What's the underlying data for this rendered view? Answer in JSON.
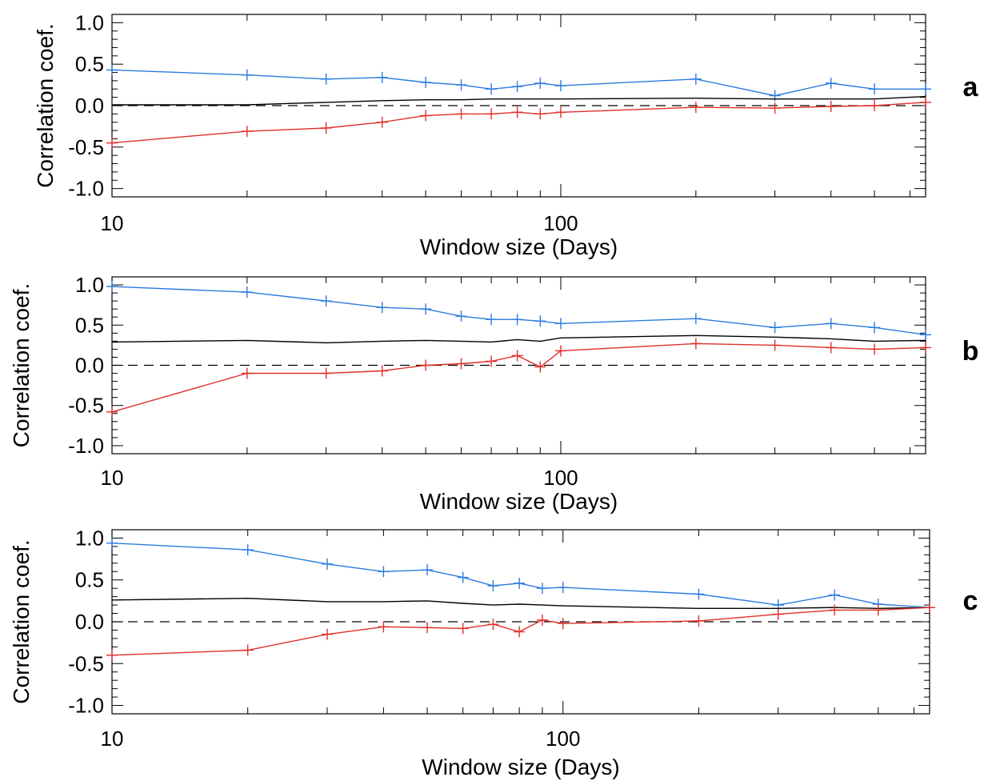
{
  "chart_data": [
    {
      "type": "line",
      "panel_label": "a",
      "xlabel": "Window size (Days)",
      "ylabel": "Correlation coef.",
      "xscale": "log",
      "xlim": [
        10,
        650
      ],
      "ylim": [
        -1.1,
        1.1
      ],
      "xticks": [
        10,
        100
      ],
      "yticks": [
        1.0,
        0.5,
        0.0,
        -0.5,
        -1.0
      ],
      "ytick_labels": [
        "1.0",
        "0.5",
        "0.0",
        "-0.5",
        "-1.0"
      ],
      "reference_line": 0.0,
      "x": [
        10,
        20,
        30,
        40,
        50,
        60,
        70,
        80,
        90,
        100,
        200,
        300,
        400,
        500,
        650
      ],
      "series": [
        {
          "color": "#2b7be0",
          "markers": true,
          "values": [
            0.43,
            0.37,
            0.32,
            0.34,
            0.28,
            0.25,
            0.2,
            0.23,
            0.27,
            0.24,
            0.32,
            0.12,
            0.27,
            0.2,
            0.2
          ]
        },
        {
          "color": "#000000",
          "markers": false,
          "values": [
            0.01,
            0.01,
            0.04,
            0.06,
            0.07,
            0.07,
            0.08,
            0.08,
            0.08,
            0.08,
            0.09,
            0.08,
            0.08,
            0.08,
            0.11
          ]
        },
        {
          "color": "#e0302b",
          "markers": true,
          "values": [
            -0.45,
            -0.31,
            -0.27,
            -0.2,
            -0.12,
            -0.1,
            -0.1,
            -0.08,
            -0.1,
            -0.08,
            -0.02,
            -0.03,
            -0.01,
            0.0,
            0.04
          ]
        }
      ]
    },
    {
      "type": "line",
      "panel_label": "b",
      "xlabel": "Window size (Days)",
      "ylabel": "Correlation coef.",
      "xscale": "log",
      "xlim": [
        10,
        650
      ],
      "ylim": [
        -1.1,
        1.1
      ],
      "xticks": [
        10,
        100
      ],
      "yticks": [
        1.0,
        0.5,
        0.0,
        -0.5,
        -1.0
      ],
      "ytick_labels": [
        "1.0",
        "0.5",
        "0.0",
        "-0.5",
        "-1.0"
      ],
      "reference_line": 0.0,
      "x": [
        10,
        20,
        30,
        40,
        50,
        60,
        70,
        80,
        90,
        100,
        200,
        300,
        400,
        500,
        650
      ],
      "series": [
        {
          "color": "#2b7be0",
          "markers": true,
          "values": [
            0.98,
            0.91,
            0.8,
            0.72,
            0.7,
            0.61,
            0.57,
            0.57,
            0.55,
            0.52,
            0.58,
            0.47,
            0.52,
            0.47,
            0.38
          ]
        },
        {
          "color": "#000000",
          "markers": false,
          "values": [
            0.29,
            0.31,
            0.28,
            0.3,
            0.31,
            0.3,
            0.29,
            0.32,
            0.3,
            0.34,
            0.37,
            0.35,
            0.33,
            0.3,
            0.31
          ]
        },
        {
          "color": "#e0302b",
          "markers": true,
          "values": [
            -0.58,
            -0.1,
            -0.1,
            -0.07,
            0.0,
            0.02,
            0.05,
            0.12,
            -0.02,
            0.18,
            0.27,
            0.25,
            0.22,
            0.2,
            0.22
          ]
        }
      ]
    },
    {
      "type": "line",
      "panel_label": "c",
      "xlabel": "Window size (Days)",
      "ylabel": "Correlation coef.",
      "xscale": "log",
      "xlim": [
        10,
        650
      ],
      "ylim": [
        -1.1,
        1.1
      ],
      "xticks": [
        10,
        100
      ],
      "yticks": [
        1.0,
        0.5,
        0.0,
        -0.5,
        -1.0
      ],
      "ytick_labels": [
        "1.0",
        "0.5",
        "0.0",
        "-0.5",
        "-1.0"
      ],
      "reference_line": 0.0,
      "x": [
        10,
        20,
        30,
        40,
        50,
        60,
        70,
        80,
        90,
        100,
        200,
        300,
        400,
        500,
        650
      ],
      "series": [
        {
          "color": "#2b7be0",
          "markers": true,
          "values": [
            0.94,
            0.86,
            0.69,
            0.6,
            0.62,
            0.53,
            0.43,
            0.46,
            0.4,
            0.41,
            0.33,
            0.2,
            0.32,
            0.21,
            0.17
          ]
        },
        {
          "color": "#000000",
          "markers": false,
          "values": [
            0.26,
            0.28,
            0.24,
            0.24,
            0.25,
            0.22,
            0.2,
            0.21,
            0.2,
            0.19,
            0.16,
            0.16,
            0.17,
            0.16,
            0.17
          ]
        },
        {
          "color": "#e0302b",
          "markers": true,
          "values": [
            -0.4,
            -0.34,
            -0.15,
            -0.06,
            -0.07,
            -0.08,
            -0.03,
            -0.12,
            0.02,
            -0.02,
            0.01,
            0.09,
            0.14,
            0.14,
            0.17
          ]
        }
      ]
    }
  ]
}
